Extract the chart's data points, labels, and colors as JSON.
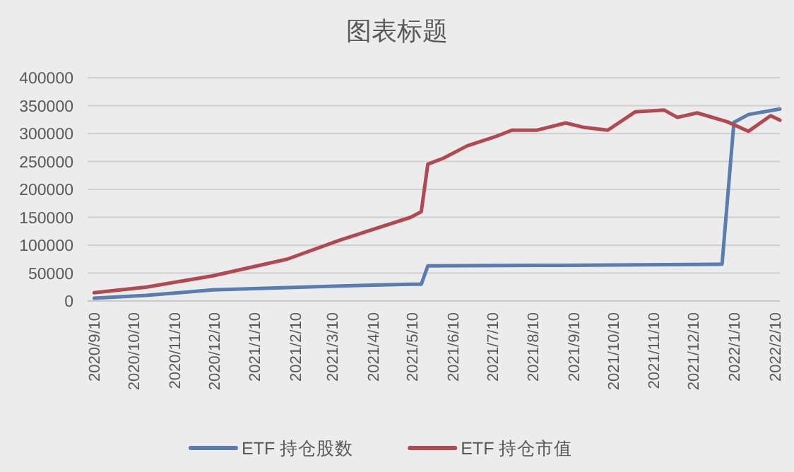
{
  "chart_data": {
    "type": "line",
    "title": "图表标题",
    "xlim": [
      "2020-09-05",
      "2022-02-14"
    ],
    "xticks": [
      {
        "value": "2020-09-10",
        "label": "2020/9/10"
      },
      {
        "value": "2020-10-10",
        "label": "2020/10/10"
      },
      {
        "value": "2020-11-10",
        "label": "2020/11/10"
      },
      {
        "value": "2020-12-10",
        "label": "2020/12/10"
      },
      {
        "value": "2021-01-10",
        "label": "2021/1/10"
      },
      {
        "value": "2021-02-10",
        "label": "2021/2/10"
      },
      {
        "value": "2021-03-10",
        "label": "2021/3/10"
      },
      {
        "value": "2021-04-10",
        "label": "2021/4/10"
      },
      {
        "value": "2021-05-10",
        "label": "2021/5/10"
      },
      {
        "value": "2021-06-10",
        "label": "2021/6/10"
      },
      {
        "value": "2021-07-10",
        "label": "2021/7/10"
      },
      {
        "value": "2021-08-10",
        "label": "2021/8/10"
      },
      {
        "value": "2021-09-10",
        "label": "2021/9/10"
      },
      {
        "value": "2021-10-10",
        "label": "2021/10/10"
      },
      {
        "value": "2021-11-10",
        "label": "2021/11/10"
      },
      {
        "value": "2021-12-10",
        "label": "2021/12/10"
      },
      {
        "value": "2022-01-10",
        "label": "2022/1/10"
      },
      {
        "value": "2022-02-10",
        "label": "2022/2/10"
      }
    ],
    "ylim": [
      0,
      400000
    ],
    "yticks": [
      0,
      50000,
      100000,
      150000,
      200000,
      250000,
      300000,
      350000,
      400000
    ],
    "grid": "y",
    "legend": "bottom",
    "marker": "none",
    "line_style": "solid",
    "series": [
      {
        "name": "ETF 持仓股数",
        "color": "#5a7db0",
        "x": [
          "2020-09-10",
          "2020-10-20",
          "2020-12-09",
          "2021-03-16",
          "2021-05-09",
          "2021-05-17",
          "2021-05-22",
          "2021-09-04",
          "2022-01-01",
          "2022-01-10",
          "2022-01-21",
          "2022-02-14"
        ],
        "values": [
          5000,
          10000,
          20000,
          27000,
          30000,
          30000,
          63000,
          64000,
          66000,
          320000,
          334000,
          344000
        ]
      },
      {
        "name": "ETF 持仓市值",
        "color": "#b04a50",
        "x": [
          "2020-09-10",
          "2020-10-20",
          "2020-12-09",
          "2021-02-04",
          "2021-03-16",
          "2021-05-09",
          "2021-05-17",
          "2021-05-22",
          "2021-06-03",
          "2021-06-21",
          "2021-07-12",
          "2021-07-25",
          "2021-08-13",
          "2021-09-04",
          "2021-09-18",
          "2021-10-06",
          "2021-10-27",
          "2021-11-18",
          "2021-11-28",
          "2021-12-13",
          "2022-01-05",
          "2022-01-21",
          "2022-02-07",
          "2022-02-14"
        ],
        "values": [
          15000,
          25000,
          45000,
          75000,
          109000,
          150000,
          160000,
          245000,
          256000,
          278000,
          294000,
          306000,
          306000,
          319000,
          311000,
          306000,
          339000,
          342000,
          329000,
          337000,
          321000,
          304000,
          332000,
          324000
        ]
      }
    ]
  }
}
